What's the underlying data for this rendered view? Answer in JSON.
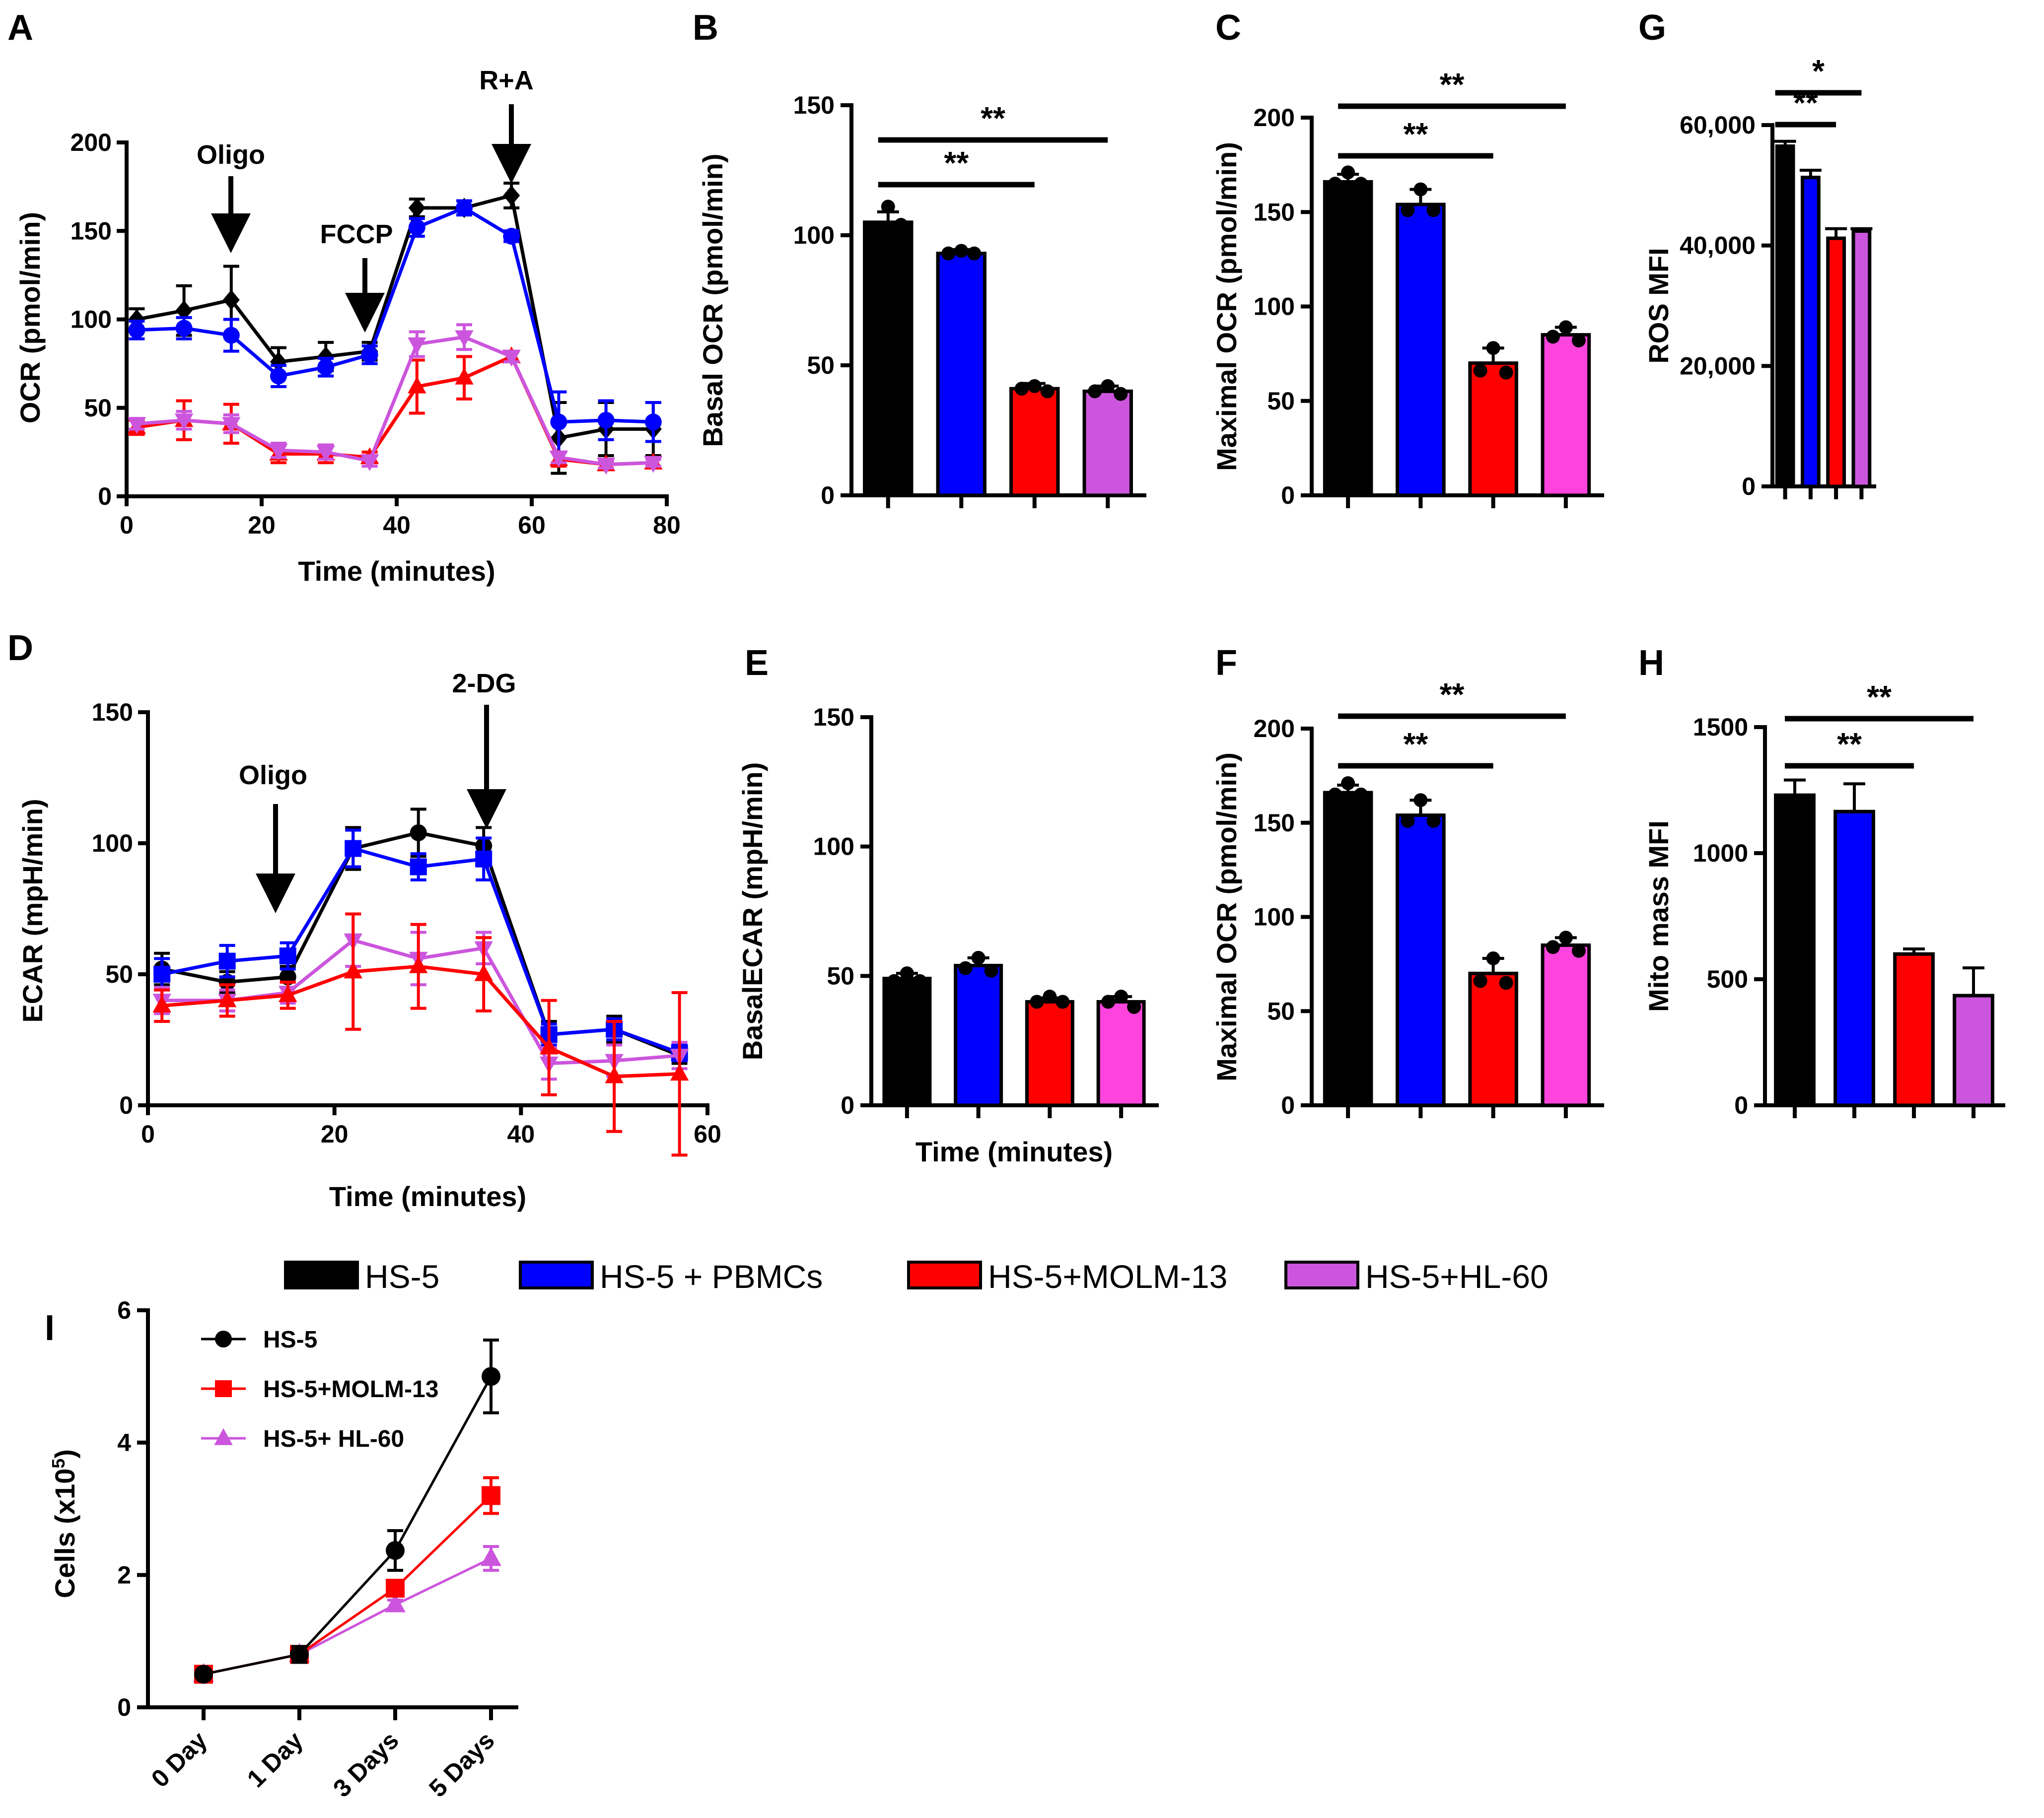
{
  "legend": {
    "items": [
      {
        "label": "HS-5",
        "color": "#000000"
      },
      {
        "label": "HS-5 + PBMCs",
        "color": "#0000ff"
      },
      {
        "label": "HS-5+MOLM-13",
        "color": "#ff0000"
      },
      {
        "label": "HS-5+HL-60",
        "color": "#cc55dd"
      }
    ]
  },
  "chart_data": [
    {
      "panel": "A",
      "type": "line",
      "xlabel": "Time (minutes)",
      "ylabel": "OCR (pmol/min)",
      "xlim": [
        0,
        80
      ],
      "ylim": [
        0,
        200
      ],
      "xticks": [
        "0",
        "20",
        "40",
        "60",
        "80"
      ],
      "yticks": [
        "0",
        "50",
        "100",
        "150",
        "200"
      ],
      "x": [
        1.5,
        8.5,
        15.5,
        22.5,
        29.5,
        36,
        43,
        50,
        57,
        64,
        71,
        78
      ],
      "series": [
        {
          "name": "HS-5",
          "color": "#000000",
          "marker": "diamond",
          "values": [
            100,
            105,
            111,
            76,
            79,
            82,
            163,
            163,
            170,
            33,
            38,
            38
          ],
          "err": [
            6,
            14,
            19,
            8,
            8,
            5,
            5,
            4,
            7,
            20,
            15,
            15
          ]
        },
        {
          "name": "HS-5 + PBMCs",
          "color": "#0000ff",
          "marker": "circle",
          "values": [
            94,
            95,
            91,
            68,
            73,
            80,
            152,
            163,
            147,
            42,
            43,
            42
          ],
          "err": [
            5,
            6,
            9,
            6,
            5,
            5,
            5,
            4,
            3,
            17,
            11,
            11
          ]
        },
        {
          "name": "HS-5+MOLM-13",
          "color": "#ff0000",
          "marker": "triangle",
          "values": [
            39,
            43,
            41,
            24,
            24,
            22,
            62,
            67,
            79,
            21,
            18,
            19
          ],
          "err": [
            4,
            11,
            11,
            5,
            5,
            3,
            15,
            12,
            3,
            4,
            3,
            3
          ]
        },
        {
          "name": "HS-5+HL-60",
          "color": "#cc55dd",
          "marker": "triangle-down",
          "values": [
            41,
            43,
            41,
            26,
            25,
            20,
            86,
            90,
            79,
            22,
            18,
            19
          ],
          "err": [
            3,
            5,
            5,
            4,
            4,
            3,
            7,
            7,
            3,
            3,
            2,
            2
          ]
        }
      ],
      "annotations": [
        "Oligo",
        "FCCP",
        "R+A"
      ]
    },
    {
      "panel": "B",
      "type": "bar",
      "ylabel": "Basal OCR (pmol/min)",
      "ylim": [
        0,
        150
      ],
      "yticks": [
        "0",
        "50",
        "100",
        "150"
      ],
      "categories": [
        "HS-5",
        "HS-5 + PBMCs",
        "HS-5+MOLM-13",
        "HS-5+HL-60"
      ],
      "colors": [
        "#000000",
        "#0000ff",
        "#ff0000",
        "#cc55dd"
      ],
      "values": [
        105,
        93,
        41,
        40
      ],
      "err": [
        4,
        1.5,
        2,
        2
      ],
      "points": [
        [
          111,
          104,
          103
        ],
        [
          94,
          93,
          93
        ],
        [
          42,
          40,
          41
        ],
        [
          42,
          39,
          40
        ]
      ],
      "significance": [
        {
          "from": 0,
          "to": 2,
          "label": "**"
        },
        {
          "from": 0,
          "to": 3,
          "label": "**"
        }
      ]
    },
    {
      "panel": "C",
      "type": "bar",
      "ylabel": "Maximal OCR (pmol/min)",
      "ylim": [
        0,
        200
      ],
      "yticks": [
        "0",
        "50",
        "100",
        "150",
        "200"
      ],
      "categories": [
        "HS-5",
        "HS-5 + PBMCs",
        "HS-5+MOLM-13",
        "HS-5+HL-60"
      ],
      "colors": [
        "#000000",
        "#0000ff",
        "#ff0000",
        "#ff44dd"
      ],
      "values": [
        166,
        154,
        70,
        85
      ],
      "err": [
        4,
        8,
        8,
        4
      ],
      "points": [
        [
          171,
          165,
          165
        ],
        [
          162,
          151,
          151
        ],
        [
          78,
          65,
          66
        ],
        [
          89,
          82,
          84
        ]
      ],
      "significance": [
        {
          "from": 0,
          "to": 2,
          "label": "**"
        },
        {
          "from": 0,
          "to": 3,
          "label": "**"
        }
      ]
    },
    {
      "panel": "G",
      "type": "bar",
      "ylabel": "ROS MFI",
      "ylim": [
        0,
        60000
      ],
      "yticks": [
        "0",
        "20,000",
        "40,000",
        "60,000"
      ],
      "categories": [
        "HS-5",
        "HS-5 + PBMCs",
        "HS-5+MOLM-13",
        "HS-5+HL-60"
      ],
      "colors": [
        "#000000",
        "#0000ff",
        "#ff0000",
        "#cc55dd"
      ],
      "values": [
        56500,
        51300,
        41200,
        42400
      ],
      "err": [
        800,
        1200,
        1600,
        400
      ],
      "significance": [
        {
          "from": 0,
          "to": 2,
          "label": "**"
        },
        {
          "from": 0,
          "to": 3,
          "label": "*"
        }
      ]
    },
    {
      "panel": "D",
      "type": "line",
      "xlabel": "Time (minutes)",
      "ylabel": "ECAR (mpH/min)",
      "xlim": [
        0,
        60
      ],
      "ylim": [
        0,
        150
      ],
      "xticks": [
        "0",
        "20",
        "40",
        "60"
      ],
      "yticks": [
        "0",
        "50",
        "100",
        "150"
      ],
      "x": [
        1.5,
        8.5,
        15,
        22,
        29,
        36,
        43,
        50,
        57
      ],
      "series": [
        {
          "name": "HS-5",
          "color": "#000000",
          "marker": "circle",
          "values": [
            52,
            47,
            49,
            98,
            104,
            99,
            27,
            29,
            19
          ],
          "err": [
            6,
            4,
            4,
            8,
            9,
            7,
            5,
            5,
            3
          ]
        },
        {
          "name": "HS-5 + PBMCs",
          "color": "#0000ff",
          "marker": "square",
          "values": [
            50,
            55,
            57,
            98,
            91,
            94,
            27,
            29,
            20
          ],
          "err": [
            6,
            6,
            5,
            7,
            5,
            8,
            4,
            4,
            3
          ]
        },
        {
          "name": "HS-5+HL-60",
          "color": "#cc55dd",
          "marker": "triangle-down",
          "values": [
            40,
            40,
            43,
            63,
            56,
            60,
            16,
            17,
            19
          ],
          "err": [
            5,
            4,
            4,
            10,
            10,
            6,
            6,
            6,
            5
          ]
        },
        {
          "name": "HS-5+MOLM-13",
          "color": "#ff0000",
          "marker": "triangle",
          "values": [
            38,
            40,
            42,
            51,
            53,
            50,
            22,
            11,
            12
          ],
          "err": [
            6,
            6,
            5,
            22,
            16,
            14,
            18,
            21,
            31
          ]
        }
      ],
      "annotations": [
        "Oligo",
        "2-DG"
      ]
    },
    {
      "panel": "E",
      "type": "bar",
      "xlabel": "Time (minutes)",
      "ylabel": "BasalECAR (mpH/min)",
      "ylim": [
        0,
        150
      ],
      "yticks": [
        "0",
        "50",
        "100",
        "150"
      ],
      "categories": [
        "HS-5",
        "HS-5 + PBMCs",
        "HS-5+MOLM-13",
        "HS-5+HL-60"
      ],
      "colors": [
        "#000000",
        "#0000ff",
        "#ff0000",
        "#ff44dd"
      ],
      "values": [
        49,
        54,
        40,
        40
      ],
      "err": [
        2,
        3,
        1.5,
        2
      ],
      "points": [
        [
          51,
          48,
          48
        ],
        [
          57,
          52,
          53
        ],
        [
          42,
          40,
          40
        ],
        [
          42,
          38,
          40
        ]
      ],
      "significance": []
    },
    {
      "panel": "F",
      "type": "bar",
      "ylabel": "Maximal OCR (pmol/min)",
      "ylim": [
        0,
        200
      ],
      "yticks": [
        "0",
        "50",
        "100",
        "150",
        "200"
      ],
      "categories": [
        "HS-5",
        "HS-5 + PBMCs",
        "HS-5+MOLM-13",
        "HS-5+HL-60"
      ],
      "colors": [
        "#000000",
        "#0000ff",
        "#ff0000",
        "#ff44dd"
      ],
      "values": [
        166,
        154,
        70,
        85
      ],
      "err": [
        4,
        8,
        8,
        4
      ],
      "points": [
        [
          171,
          165,
          165
        ],
        [
          162,
          151,
          151
        ],
        [
          78,
          65,
          66
        ],
        [
          89,
          82,
          84
        ]
      ],
      "significance": [
        {
          "from": 0,
          "to": 2,
          "label": "**"
        },
        {
          "from": 0,
          "to": 3,
          "label": "**"
        }
      ]
    },
    {
      "panel": "H",
      "type": "bar",
      "ylabel": "Mito mass MFI",
      "ylim": [
        0,
        1500
      ],
      "yticks": [
        "0",
        "500",
        "1000",
        "1500"
      ],
      "categories": [
        "HS-5",
        "HS-5 + PBMCs",
        "HS-5+MOLM-13",
        "HS-5+HL-60"
      ],
      "colors": [
        "#000000",
        "#0000ff",
        "#ff0000",
        "#cc55dd"
      ],
      "values": [
        1230,
        1165,
        600,
        435
      ],
      "err": [
        60,
        110,
        20,
        110
      ],
      "significance": [
        {
          "from": 0,
          "to": 2,
          "label": "**"
        },
        {
          "from": 0,
          "to": 3,
          "label": "**"
        }
      ]
    },
    {
      "panel": "I",
      "type": "line",
      "ylabel": "Cells  (x10",
      "ylabel_sup": "5",
      "ylabel_end": ")",
      "ylim": [
        0,
        6
      ],
      "yticks": [
        "0",
        "2",
        "4",
        "6"
      ],
      "categories": [
        "0 Day",
        "1 Day",
        "3 Days",
        "5 Days"
      ],
      "series": [
        {
          "name": "HS-5",
          "color": "#000000",
          "marker": "circle",
          "values": [
            0.5,
            0.8,
            2.37,
            5.0
          ],
          "err": [
            0.05,
            0.12,
            0.3,
            0.55
          ]
        },
        {
          "name": "HS-5+MOLM-13",
          "color": "#ff0000",
          "marker": "square",
          "values": [
            0.5,
            0.8,
            1.8,
            3.2
          ],
          "err": [
            0.05,
            0.1,
            0.1,
            0.27
          ]
        },
        {
          "name": "HS-5+ HL-60",
          "color": "#cc55dd",
          "marker": "triangle",
          "values": [
            0.5,
            0.8,
            1.55,
            2.25
          ],
          "err": [
            0.05,
            0.08,
            0.07,
            0.18
          ]
        }
      ]
    }
  ]
}
